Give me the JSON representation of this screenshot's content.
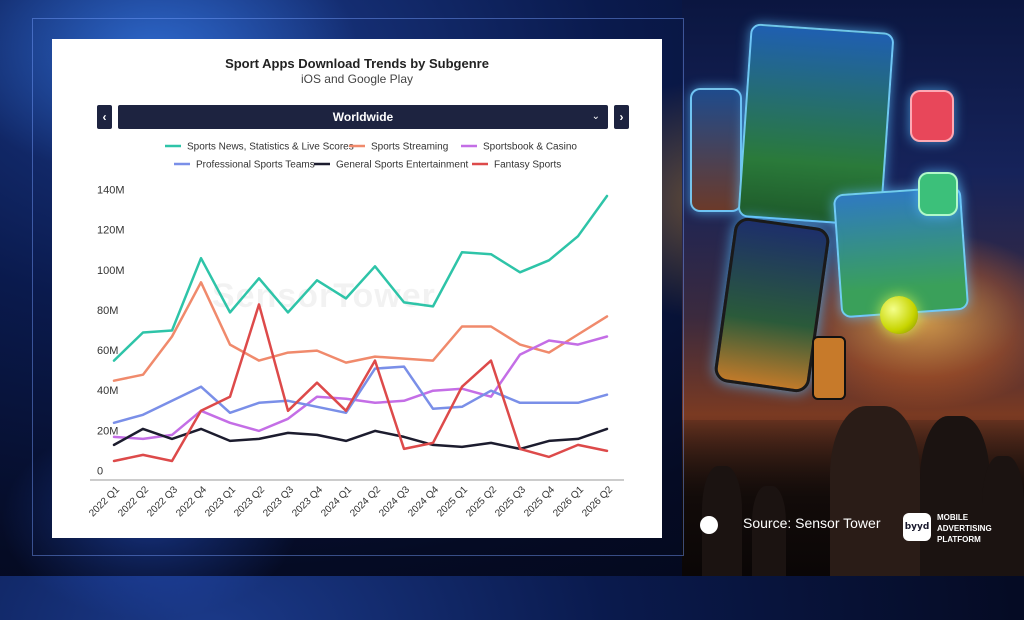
{
  "source": "Source: Sensor Tower",
  "logo": {
    "mark": "byyd",
    "text": "MOBILE ADVERTISING PLATFORM"
  },
  "watermark": "SensorTower",
  "selector": {
    "value": "Worldwide",
    "prev_icon": "chevron-left-icon",
    "next_icon": "chevron-right-icon",
    "dropdown_icon": "chevron-down-icon"
  },
  "colors": {
    "panel_bg": "#ffffff",
    "control_bg": "#1d2340"
  },
  "chart_data": {
    "type": "line",
    "title": "Sport Apps Download Trends by Subgenre",
    "subtitle": "iOS and Google Play",
    "xlabel": "",
    "ylabel": "",
    "ylim": [
      0,
      140000000
    ],
    "yticks": [
      0,
      20000000,
      40000000,
      60000000,
      80000000,
      100000000,
      120000000,
      140000000
    ],
    "ytick_labels": [
      "0",
      "20M",
      "40M",
      "60M",
      "80M",
      "100M",
      "120M",
      "140M"
    ],
    "grid": false,
    "legend": "top",
    "categories": [
      "2022 Q1",
      "2022 Q2",
      "2022 Q3",
      "2022 Q4",
      "2023 Q1",
      "2023 Q2",
      "2023 Q3",
      "2023 Q4",
      "2024 Q1",
      "2024 Q2",
      "2024 Q3",
      "2024 Q4",
      "2025 Q1",
      "2025 Q2",
      "2025 Q3",
      "2025 Q4",
      "2026 Q1",
      "2026 Q2"
    ],
    "series": [
      {
        "name": "Sports News, Statistics & Live Scores",
        "color": "#2ec4a8",
        "values": [
          55000000,
          69000000,
          70000000,
          106000000,
          79000000,
          96000000,
          79000000,
          95000000,
          86000000,
          102000000,
          84000000,
          82000000,
          109000000,
          108000000,
          99000000,
          105000000,
          117000000,
          137000000
        ]
      },
      {
        "name": "Sports Streaming",
        "color": "#f08a6c",
        "values": [
          45000000,
          48000000,
          67000000,
          94000000,
          63000000,
          55000000,
          59000000,
          60000000,
          54000000,
          57000000,
          56000000,
          55000000,
          72000000,
          72000000,
          63000000,
          59000000,
          68000000,
          77000000
        ]
      },
      {
        "name": "Sportsbook & Casino",
        "color": "#c46ee6",
        "values": [
          17000000,
          16000000,
          18000000,
          30000000,
          24000000,
          20000000,
          26000000,
          37000000,
          36000000,
          34000000,
          35000000,
          40000000,
          41000000,
          37000000,
          58000000,
          65000000,
          63000000,
          67000000
        ]
      },
      {
        "name": "Professional Sports Teams",
        "color": "#7a8fe8",
        "values": [
          24000000,
          28000000,
          35000000,
          42000000,
          29000000,
          34000000,
          35000000,
          32000000,
          29000000,
          51000000,
          52000000,
          31000000,
          32000000,
          40000000,
          34000000,
          34000000,
          34000000,
          38000000
        ]
      },
      {
        "name": "General Sports Entertainment",
        "color": "#1c1c2e",
        "values": [
          13000000,
          21000000,
          16000000,
          21000000,
          15000000,
          16000000,
          19000000,
          18000000,
          15000000,
          20000000,
          17000000,
          13000000,
          12000000,
          14000000,
          11000000,
          15000000,
          16000000,
          21000000
        ]
      },
      {
        "name": "Fantasy Sports",
        "color": "#dd4a4a",
        "values": [
          5000000,
          8000000,
          5000000,
          30000000,
          37000000,
          83000000,
          30000000,
          44000000,
          30000000,
          55000000,
          11000000,
          14000000,
          42000000,
          55000000,
          11000000,
          7000000,
          13000000,
          10000000
        ]
      }
    ]
  }
}
